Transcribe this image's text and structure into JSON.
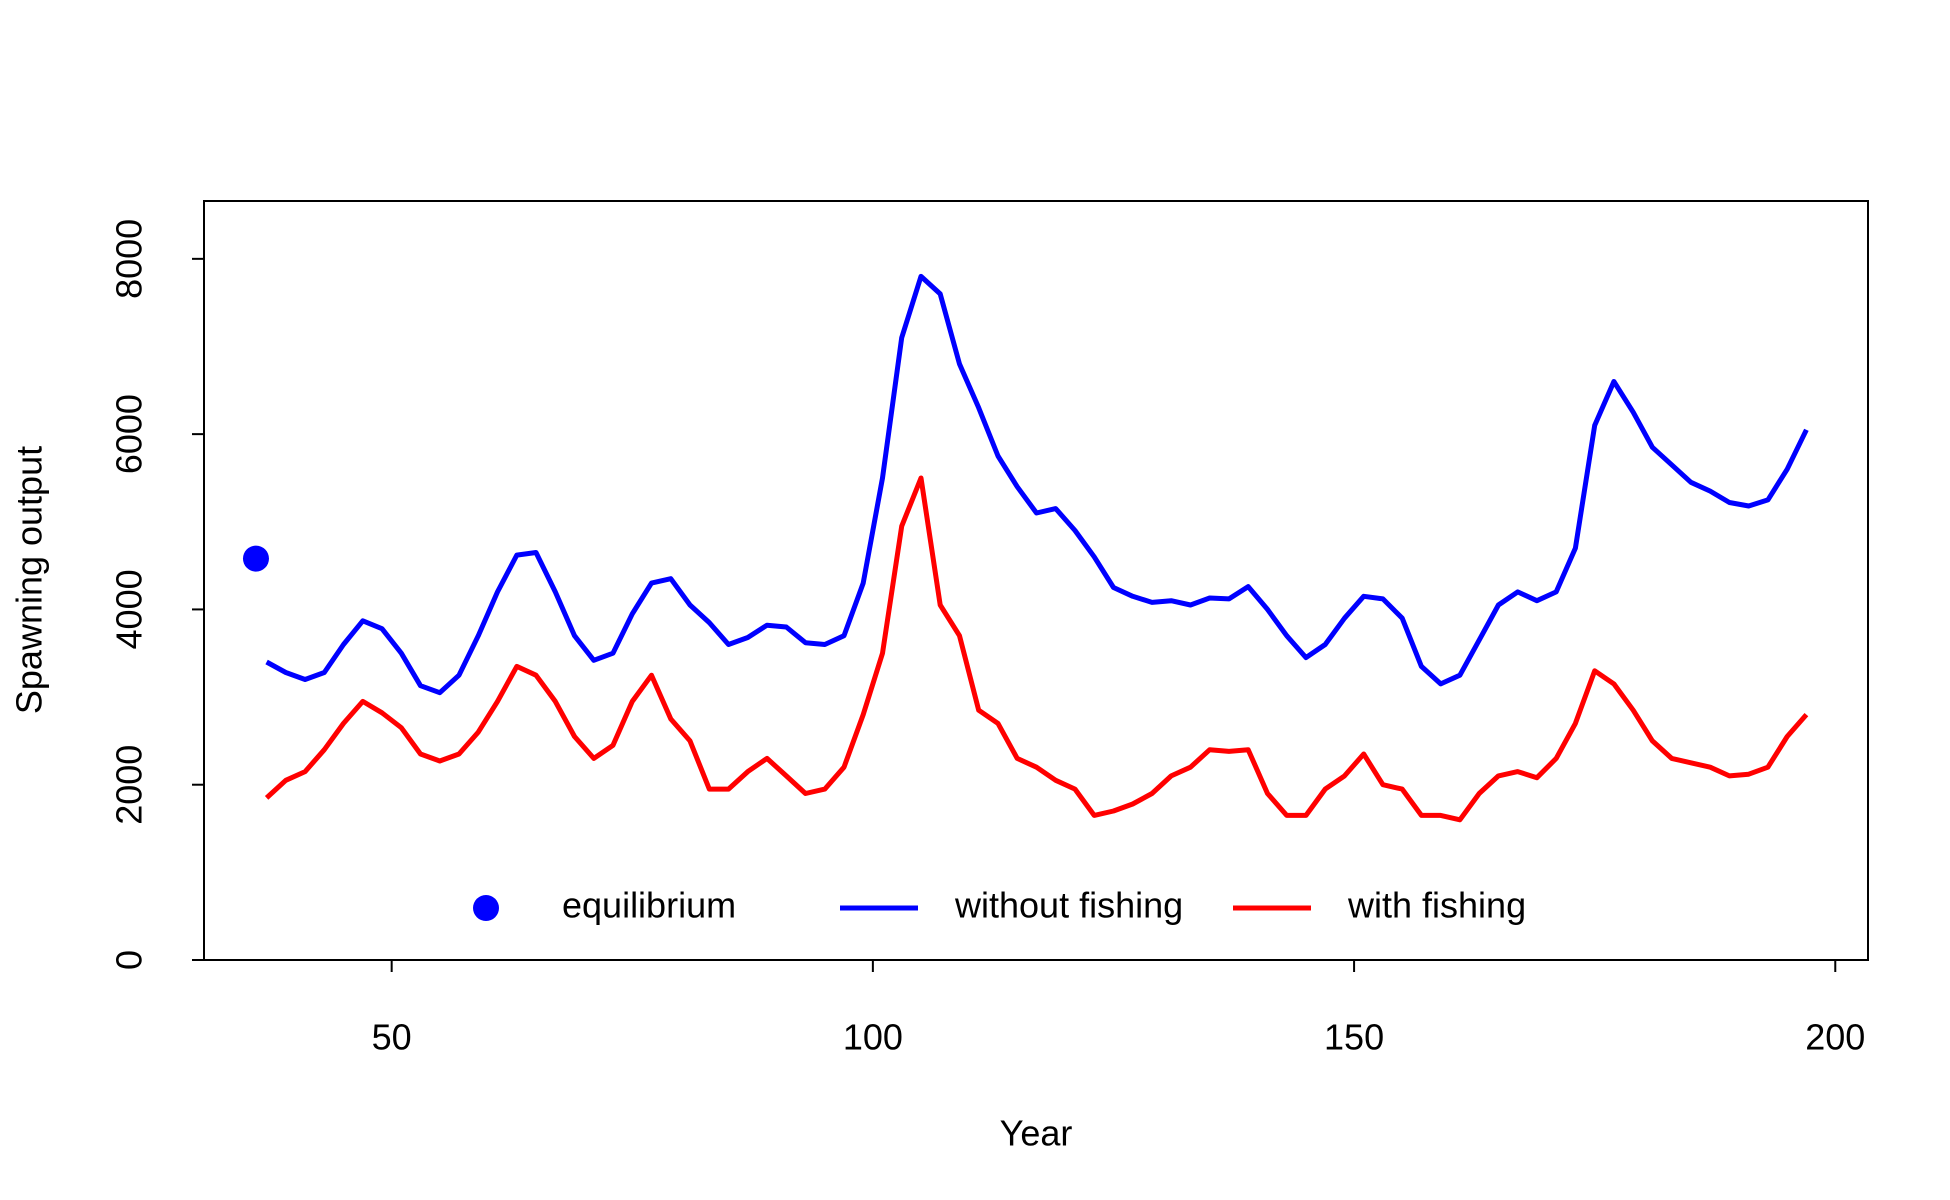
{
  "chart_data": {
    "type": "line",
    "xlabel": "Year",
    "ylabel": "Spawning output",
    "xlim": [
      30.5,
      203.4
    ],
    "ylim": [
      0,
      8660
    ],
    "xticks": [
      50,
      100,
      150,
      200
    ],
    "yticks": [
      0,
      2000,
      4000,
      6000,
      8000
    ],
    "grid": false,
    "legend": "bottom",
    "x": [
      37,
      39,
      41,
      43,
      45,
      47,
      49,
      51,
      53,
      55,
      57,
      59,
      61,
      63,
      65,
      67,
      69,
      71,
      73,
      75,
      77,
      79,
      81,
      83,
      85,
      87,
      89,
      91,
      93,
      95,
      97,
      99,
      101,
      103,
      105,
      107,
      109,
      111,
      113,
      115,
      117,
      119,
      121,
      123,
      125,
      127,
      129,
      131,
      133,
      135,
      137,
      139,
      141,
      143,
      145,
      147,
      149,
      151,
      153,
      155,
      157,
      159,
      161,
      163,
      165,
      167,
      169,
      171,
      173,
      175,
      177,
      179,
      181,
      183,
      185,
      187,
      189,
      191,
      193,
      195,
      197
    ],
    "series": [
      {
        "name": "equilibrium",
        "color": "#0000ff",
        "kind": "point",
        "x": [
          35.9
        ],
        "values": [
          4580
        ]
      },
      {
        "name": "without fishing",
        "color": "#0000ff",
        "kind": "line",
        "values": [
          3400,
          3280,
          3200,
          3280,
          3600,
          3870,
          3780,
          3500,
          3130,
          3050,
          3250,
          3700,
          4200,
          4620,
          4650,
          4200,
          3700,
          3420,
          3500,
          3950,
          4300,
          4350,
          4050,
          3850,
          3600,
          3680,
          3820,
          3800,
          3620,
          3600,
          3700,
          4300,
          5500,
          7100,
          7800,
          7600,
          6800,
          6300,
          5750,
          5400,
          5100,
          5150,
          4900,
          4600,
          4250,
          4150,
          4080,
          4100,
          4050,
          4130,
          4120,
          4260,
          4000,
          3700,
          3450,
          3600,
          3900,
          4150,
          4120,
          3900,
          3350,
          3150,
          3250,
          3650,
          4050,
          4200,
          4100,
          4200,
          4700,
          6100,
          6600,
          6250,
          5850,
          5650,
          5450,
          5350,
          5220,
          5180,
          5250,
          5600,
          6050
        ]
      },
      {
        "name": "with fishing",
        "color": "#ff0000",
        "kind": "line",
        "values": [
          1850,
          2050,
          2150,
          2400,
          2700,
          2950,
          2820,
          2650,
          2350,
          2270,
          2350,
          2600,
          2950,
          3350,
          3250,
          2950,
          2550,
          2300,
          2450,
          2950,
          3250,
          2750,
          2500,
          1950,
          1950,
          2150,
          2300,
          2100,
          1900,
          1950,
          2200,
          2800,
          3500,
          4950,
          5500,
          4050,
          3700,
          2850,
          2700,
          2300,
          2200,
          2050,
          1950,
          1650,
          1700,
          1780,
          1900,
          2100,
          2200,
          2400,
          2380,
          2400,
          1900,
          1650,
          1650,
          1950,
          2100,
          2350,
          2000,
          1950,
          1650,
          1650,
          1600,
          1900,
          2100,
          2150,
          2080,
          2300,
          2700,
          3300,
          3150,
          2850,
          2500,
          2300,
          2250,
          2200,
          2100,
          2120,
          2200,
          2550,
          2800
        ]
      }
    ]
  }
}
